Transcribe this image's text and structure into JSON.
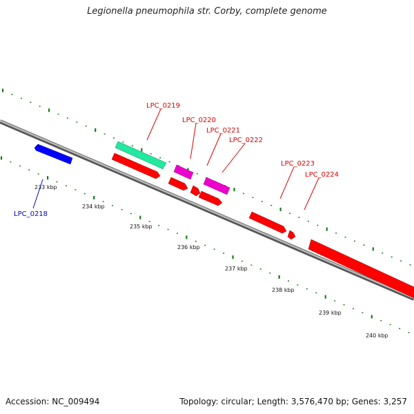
{
  "title": "Legionella pneumophila str. Corby, complete genome",
  "footer": {
    "accession": "Accession: NC_009494",
    "summary": "Topology: circular; Length: 3,576,470 bp; Genes: 3,257"
  },
  "colors": {
    "backbone": "#888888",
    "tick": "#1a7a1a",
    "gene_red": "#ff0000",
    "gene_blue": "#0000ff",
    "gene_magenta": "#ee00cc",
    "gene_teal": "#22e8a0"
  },
  "scale": {
    "labels": [
      "233 kbp",
      "234 kbp",
      "235 kbp",
      "236 kbp",
      "237 kbp",
      "238 kbp",
      "239 kbp",
      "240 kbp"
    ]
  },
  "genes": [
    {
      "id": "LPC_0218",
      "label": "LPC_0218",
      "color": "gene_blue"
    },
    {
      "id": "LPC_0219",
      "label": "LPC_0219",
      "color": "gene_red"
    },
    {
      "id": "LPC_0220",
      "label": "LPC_0220",
      "color": "gene_red"
    },
    {
      "id": "LPC_0221",
      "label": "LPC_0221",
      "color": "gene_red"
    },
    {
      "id": "LPC_0222",
      "label": "LPC_0222",
      "color": "gene_red"
    },
    {
      "id": "LPC_0223",
      "label": "LPC_0223",
      "color": "gene_red"
    },
    {
      "id": "LPC_0224",
      "label": "LPC_0224",
      "color": "gene_red"
    }
  ]
}
